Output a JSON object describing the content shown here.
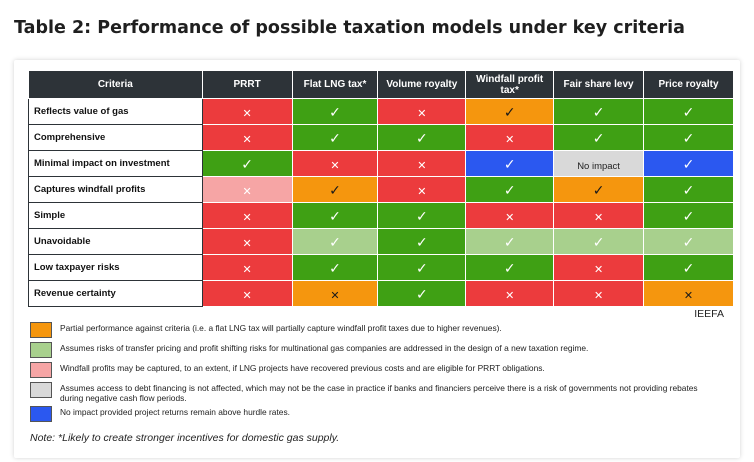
{
  "title": "Table 2: Performance of possible taxation models under key criteria",
  "table": {
    "headers": [
      "Criteria",
      "PRRT",
      "Flat LNG tax*",
      "Volume royalty",
      "Windfall profit tax*",
      "Fair share levy",
      "Price royalty"
    ],
    "rows": [
      {
        "label": "Reflects value of gas",
        "cells": [
          {
            "color": "#ec3b3d",
            "mark": "cross"
          },
          {
            "color": "#3fa014",
            "mark": "check"
          },
          {
            "color": "#ec3b3d",
            "mark": "cross"
          },
          {
            "color": "#f5960e",
            "mark": "check"
          },
          {
            "color": "#3fa014",
            "mark": "check"
          },
          {
            "color": "#3fa014",
            "mark": "check"
          }
        ]
      },
      {
        "label": "Comprehensive",
        "cells": [
          {
            "color": "#ec3b3d",
            "mark": "cross"
          },
          {
            "color": "#3fa014",
            "mark": "check"
          },
          {
            "color": "#3fa014",
            "mark": "check"
          },
          {
            "color": "#ec3b3d",
            "mark": "cross"
          },
          {
            "color": "#3fa014",
            "mark": "check"
          },
          {
            "color": "#3fa014",
            "mark": "check"
          }
        ]
      },
      {
        "label": "Minimal impact on investment",
        "cells": [
          {
            "color": "#3fa014",
            "mark": "check"
          },
          {
            "color": "#ec3b3d",
            "mark": "cross"
          },
          {
            "color": "#ec3b3d",
            "mark": "cross"
          },
          {
            "color": "#2b58f0",
            "mark": "check"
          },
          {
            "color": "#d9d9d9",
            "mark": "text",
            "text": "No impact"
          },
          {
            "color": "#2b58f0",
            "mark": "check"
          }
        ]
      },
      {
        "label": "Captures windfall profits",
        "cells": [
          {
            "color": "#f6a5a5",
            "mark": "cross"
          },
          {
            "color": "#f5960e",
            "mark": "check"
          },
          {
            "color": "#ec3b3d",
            "mark": "cross"
          },
          {
            "color": "#3fa014",
            "mark": "check"
          },
          {
            "color": "#f5960e",
            "mark": "check"
          },
          {
            "color": "#3fa014",
            "mark": "check"
          }
        ]
      },
      {
        "label": "Simple",
        "cells": [
          {
            "color": "#ec3b3d",
            "mark": "cross"
          },
          {
            "color": "#3fa014",
            "mark": "check"
          },
          {
            "color": "#3fa014",
            "mark": "check"
          },
          {
            "color": "#ec3b3d",
            "mark": "cross"
          },
          {
            "color": "#ec3b3d",
            "mark": "cross"
          },
          {
            "color": "#3fa014",
            "mark": "check"
          }
        ]
      },
      {
        "label": "Unavoidable",
        "cells": [
          {
            "color": "#ec3b3d",
            "mark": "cross"
          },
          {
            "color": "#a8d08d",
            "mark": "check"
          },
          {
            "color": "#3fa014",
            "mark": "check"
          },
          {
            "color": "#a8d08d",
            "mark": "check"
          },
          {
            "color": "#a8d08d",
            "mark": "check"
          },
          {
            "color": "#a8d08d",
            "mark": "check"
          }
        ]
      },
      {
        "label": "Low taxpayer risks",
        "cells": [
          {
            "color": "#ec3b3d",
            "mark": "cross"
          },
          {
            "color": "#3fa014",
            "mark": "check"
          },
          {
            "color": "#3fa014",
            "mark": "check"
          },
          {
            "color": "#3fa014",
            "mark": "check"
          },
          {
            "color": "#ec3b3d",
            "mark": "cross"
          },
          {
            "color": "#3fa014",
            "mark": "check"
          }
        ]
      },
      {
        "label": "Revenue certainty",
        "cells": [
          {
            "color": "#ec3b3d",
            "mark": "cross"
          },
          {
            "color": "#f5960e",
            "mark": "cross"
          },
          {
            "color": "#3fa014",
            "mark": "check"
          },
          {
            "color": "#ec3b3d",
            "mark": "cross"
          },
          {
            "color": "#ec3b3d",
            "mark": "cross"
          },
          {
            "color": "#f5960e",
            "mark": "cross"
          }
        ]
      }
    ]
  },
  "source": "IEEFA",
  "legend": [
    {
      "color": "#f5960e",
      "text": "Partial performance against criteria (i.e. a flat LNG tax will partially capture windfall profit taxes due to higher revenues)."
    },
    {
      "color": "#a8d08d",
      "text": "Assumes risks of transfer pricing and profit shifting risks for multinational gas companies are addressed in the design of a new taxation regime."
    },
    {
      "color": "#f6a5a5",
      "text": "Windfall profits may be captured, to an extent, if LNG projects have recovered previous costs and are eligible for PRRT obligations."
    },
    {
      "color": "#d9d9d9",
      "text": "Assumes access to debt financing is not affected, which may not be the case in practice if banks and financiers perceive there is a risk of governments not providing rebates during negative cash flow periods."
    },
    {
      "color": "#2b58f0",
      "text": "No impact provided project returns remain above hurdle rates."
    }
  ],
  "note": "Note: *Likely to create stronger incentives for domestic gas supply."
}
